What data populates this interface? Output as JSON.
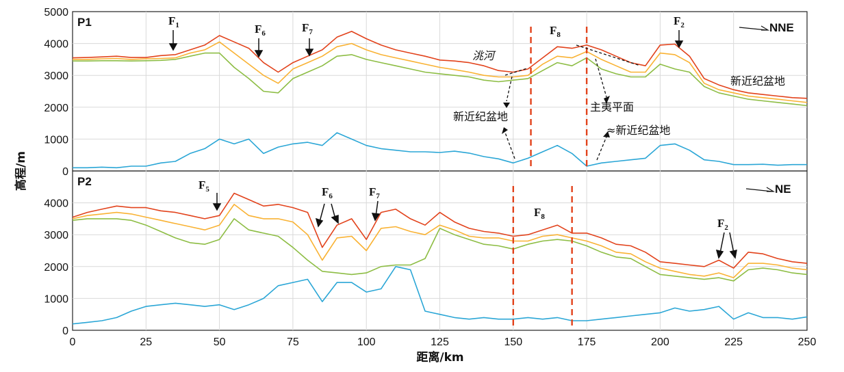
{
  "chart_data": [
    {
      "panel": "P1",
      "type": "line",
      "direction": "NNE",
      "xlabel": "距离/km",
      "ylabel": "高程/m",
      "xlim": [
        0,
        250
      ],
      "ylim": [
        0,
        5000
      ],
      "x_ticks": [
        0,
        25,
        50,
        75,
        100,
        125,
        150,
        175,
        200,
        225,
        250
      ],
      "y_ticks": [
        0,
        1000,
        2000,
        3000,
        4000,
        5000
      ],
      "grid": true,
      "x": [
        0,
        5,
        10,
        15,
        20,
        25,
        30,
        35,
        40,
        45,
        50,
        55,
        60,
        65,
        70,
        75,
        80,
        85,
        90,
        95,
        100,
        105,
        110,
        115,
        120,
        125,
        130,
        135,
        140,
        145,
        150,
        155,
        160,
        165,
        170,
        175,
        180,
        185,
        190,
        195,
        200,
        205,
        210,
        215,
        220,
        225,
        230,
        235,
        240,
        245,
        250
      ],
      "series": [
        {
          "color": "#e2421b",
          "values": [
            3550,
            3560,
            3580,
            3600,
            3560,
            3560,
            3620,
            3650,
            3800,
            3950,
            4250,
            4050,
            3850,
            3400,
            3100,
            3400,
            3600,
            3800,
            4200,
            4380,
            4150,
            3950,
            3800,
            3700,
            3600,
            3480,
            3450,
            3400,
            3300,
            3150,
            3100,
            3200,
            3550,
            3900,
            3850,
            3950,
            3800,
            3600,
            3400,
            3300,
            3950,
            3980,
            3600,
            2900,
            2700,
            2550,
            2450,
            2400,
            2350,
            2300,
            2280
          ]
        },
        {
          "color": "#f9b233",
          "values": [
            3500,
            3500,
            3520,
            3530,
            3500,
            3520,
            3530,
            3550,
            3700,
            3800,
            4050,
            3700,
            3350,
            3000,
            2750,
            3200,
            3400,
            3600,
            3900,
            4000,
            3800,
            3650,
            3550,
            3450,
            3350,
            3250,
            3180,
            3100,
            3000,
            2950,
            2950,
            3000,
            3350,
            3600,
            3550,
            3750,
            3500,
            3300,
            3100,
            3100,
            3700,
            3650,
            3400,
            2750,
            2550,
            2450,
            2350,
            2300,
            2250,
            2200,
            2150
          ]
        },
        {
          "color": "#8dbd44",
          "values": [
            3450,
            3450,
            3460,
            3460,
            3450,
            3460,
            3470,
            3500,
            3600,
            3700,
            3700,
            3250,
            2900,
            2500,
            2450,
            2900,
            3100,
            3300,
            3600,
            3650,
            3500,
            3400,
            3300,
            3200,
            3100,
            3050,
            3000,
            2950,
            2850,
            2800,
            2850,
            2900,
            3150,
            3400,
            3300,
            3550,
            3200,
            3050,
            2950,
            2950,
            3350,
            3200,
            3100,
            2650,
            2450,
            2350,
            2250,
            2200,
            2150,
            2100,
            2050
          ]
        },
        {
          "color": "#2aa6d6",
          "values": [
            100,
            100,
            120,
            100,
            150,
            150,
            250,
            300,
            550,
            700,
            1000,
            850,
            1000,
            550,
            750,
            850,
            900,
            800,
            1200,
            1000,
            800,
            700,
            650,
            600,
            600,
            580,
            620,
            560,
            450,
            380,
            250,
            400,
            600,
            800,
            550,
            150,
            250,
            300,
            350,
            400,
            800,
            850,
            650,
            350,
            300,
            200,
            200,
            210,
            180,
            200,
            200
          ]
        }
      ],
      "annotations": [
        "F1",
        "F6",
        "F7",
        "F8",
        "F2",
        "洮河",
        "新近纪盆地",
        "主夷平面",
        "≈新近纪盆地",
        "新近纪盆地"
      ],
      "dashed_verticals_x": [
        156,
        175
      ]
    },
    {
      "panel": "P2",
      "type": "line",
      "direction": "NE",
      "xlabel": "距离/km",
      "ylabel": "高程/m",
      "xlim": [
        0,
        250
      ],
      "ylim": [
        0,
        5000
      ],
      "x_ticks": [
        0,
        25,
        50,
        75,
        100,
        125,
        150,
        175,
        200,
        225,
        250
      ],
      "y_ticks": [
        0,
        1000,
        2000,
        3000,
        4000
      ],
      "grid": true,
      "x": [
        0,
        5,
        10,
        15,
        20,
        25,
        30,
        35,
        40,
        45,
        50,
        55,
        60,
        65,
        70,
        75,
        80,
        85,
        90,
        95,
        100,
        105,
        110,
        115,
        120,
        125,
        130,
        135,
        140,
        145,
        150,
        155,
        160,
        165,
        170,
        175,
        180,
        185,
        190,
        195,
        200,
        205,
        210,
        215,
        220,
        225,
        230,
        235,
        240,
        245,
        250
      ],
      "series": [
        {
          "color": "#e2421b",
          "values": [
            3550,
            3700,
            3800,
            3900,
            3850,
            3850,
            3750,
            3700,
            3600,
            3500,
            3600,
            4300,
            4100,
            3900,
            3950,
            3850,
            3700,
            2600,
            3300,
            3500,
            2850,
            3700,
            3800,
            3500,
            3300,
            3700,
            3400,
            3200,
            3100,
            3050,
            2950,
            3000,
            3150,
            3300,
            3050,
            3050,
            2900,
            2700,
            2650,
            2450,
            2150,
            2100,
            2050,
            2000,
            2200,
            1950,
            2450,
            2400,
            2250,
            2150,
            2100
          ]
        },
        {
          "color": "#f9b233",
          "values": [
            3500,
            3600,
            3650,
            3700,
            3650,
            3550,
            3450,
            3350,
            3250,
            3150,
            3300,
            3950,
            3600,
            3500,
            3500,
            3400,
            3000,
            2200,
            2900,
            2950,
            2500,
            3200,
            3250,
            3100,
            3000,
            3300,
            3150,
            2950,
            2900,
            2900,
            2800,
            2800,
            2950,
            3000,
            2900,
            2800,
            2650,
            2450,
            2400,
            2150,
            1950,
            1850,
            1750,
            1700,
            1800,
            1650,
            2100,
            2100,
            2050,
            1950,
            1900
          ]
        },
        {
          "color": "#8dbd44",
          "values": [
            3450,
            3500,
            3500,
            3500,
            3450,
            3300,
            3100,
            2900,
            2750,
            2700,
            2850,
            3500,
            3150,
            3050,
            2950,
            2600,
            2200,
            1850,
            1800,
            1750,
            1800,
            2000,
            2050,
            2050,
            2250,
            3200,
            3000,
            2850,
            2700,
            2650,
            2550,
            2700,
            2800,
            2850,
            2800,
            2650,
            2450,
            2300,
            2250,
            2000,
            1750,
            1700,
            1650,
            1600,
            1650,
            1550,
            1900,
            1950,
            1900,
            1800,
            1750
          ]
        },
        {
          "color": "#2aa6d6",
          "values": [
            200,
            250,
            300,
            400,
            600,
            750,
            800,
            850,
            800,
            750,
            800,
            650,
            800,
            1000,
            1400,
            1500,
            1600,
            900,
            1500,
            1500,
            1200,
            1300,
            2000,
            1900,
            600,
            500,
            400,
            350,
            400,
            350,
            350,
            400,
            350,
            400,
            300,
            300,
            350,
            400,
            450,
            500,
            550,
            700,
            600,
            650,
            750,
            350,
            550,
            400,
            400,
            350,
            420
          ]
        }
      ],
      "annotations": [
        "F5",
        "F6",
        "F7",
        "F8",
        "F2"
      ],
      "dashed_verticals_x": [
        150,
        170
      ]
    }
  ]
}
